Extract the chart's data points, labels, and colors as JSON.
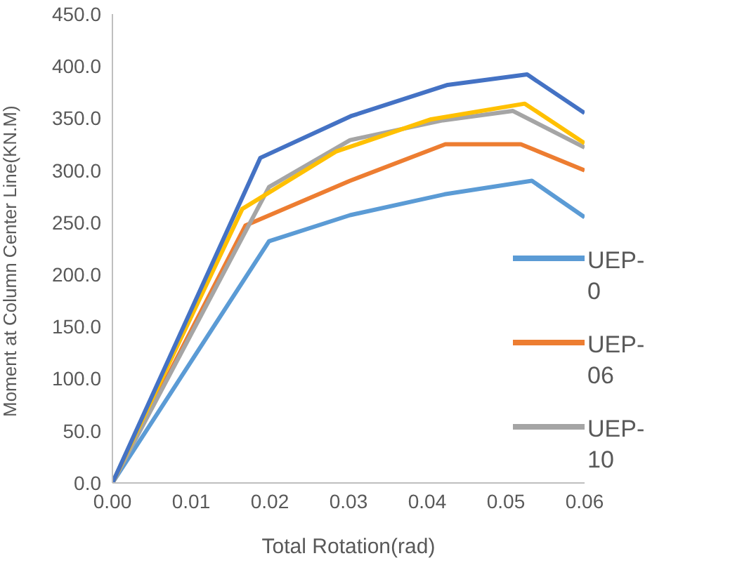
{
  "chart_data": {
    "type": "line",
    "xlabel": "Total Rotation(rad)",
    "ylabel": "Moment at Column Center Line(KN.M)",
    "series": [
      {
        "name": "UEP-0",
        "color": "#5b9bd5",
        "x": [
          0,
          0.0199,
          0.0302,
          0.0422,
          0.0533,
          0.06
        ],
        "values": [
          0,
          232,
          257,
          277,
          290,
          255
        ]
      },
      {
        "name": "UEP-06",
        "color": "#ed7d31",
        "x": [
          0,
          0.0169,
          0.0302,
          0.0423,
          0.0519,
          0.06
        ],
        "values": [
          0,
          247,
          290,
          325,
          325,
          300
        ]
      },
      {
        "name": "UEP-10",
        "color": "#a5a5a5",
        "x": [
          0,
          0.0199,
          0.0302,
          0.042,
          0.0509,
          0.06
        ],
        "values": [
          0,
          284,
          329,
          348,
          357,
          322
        ]
      },
      {
        "color": "#ffc000",
        "x": [
          0,
          0.0165,
          0.0284,
          0.0405,
          0.0524,
          0.06
        ],
        "values": [
          0,
          263,
          318,
          349,
          364,
          326
        ]
      },
      {
        "color": "#4472c4",
        "x": [
          0,
          0.0188,
          0.0303,
          0.0426,
          0.0527,
          0.06
        ],
        "values": [
          0,
          312,
          352,
          382,
          392,
          355
        ]
      }
    ],
    "xlim": [
      0,
      0.06
    ],
    "xticks": [
      {
        "value": 0,
        "label": "0.00"
      },
      {
        "value": 0.01,
        "label": "0.01"
      },
      {
        "value": 0.02,
        "label": "0.02"
      },
      {
        "value": 0.03,
        "label": "0.03"
      },
      {
        "value": 0.04,
        "label": "0.04"
      },
      {
        "value": 0.05,
        "label": "0.05"
      },
      {
        "value": 0.06,
        "label": "0.06"
      }
    ],
    "ylim": [
      0,
      450
    ],
    "yticks": [
      {
        "value": 0,
        "label": "0.0"
      },
      {
        "value": 50,
        "label": "50.0"
      },
      {
        "value": 100,
        "label": "100.0"
      },
      {
        "value": 150,
        "label": "150.0"
      },
      {
        "value": 200,
        "label": "200.0"
      },
      {
        "value": 250,
        "label": "250.0"
      },
      {
        "value": 300,
        "label": "300.0"
      },
      {
        "value": 350,
        "label": "350.0"
      },
      {
        "value": 400,
        "label": "400.0"
      },
      {
        "value": 450,
        "label": "450.0"
      }
    ],
    "grid": false,
    "legend": "right",
    "marker": "none",
    "line_style": "solid"
  }
}
